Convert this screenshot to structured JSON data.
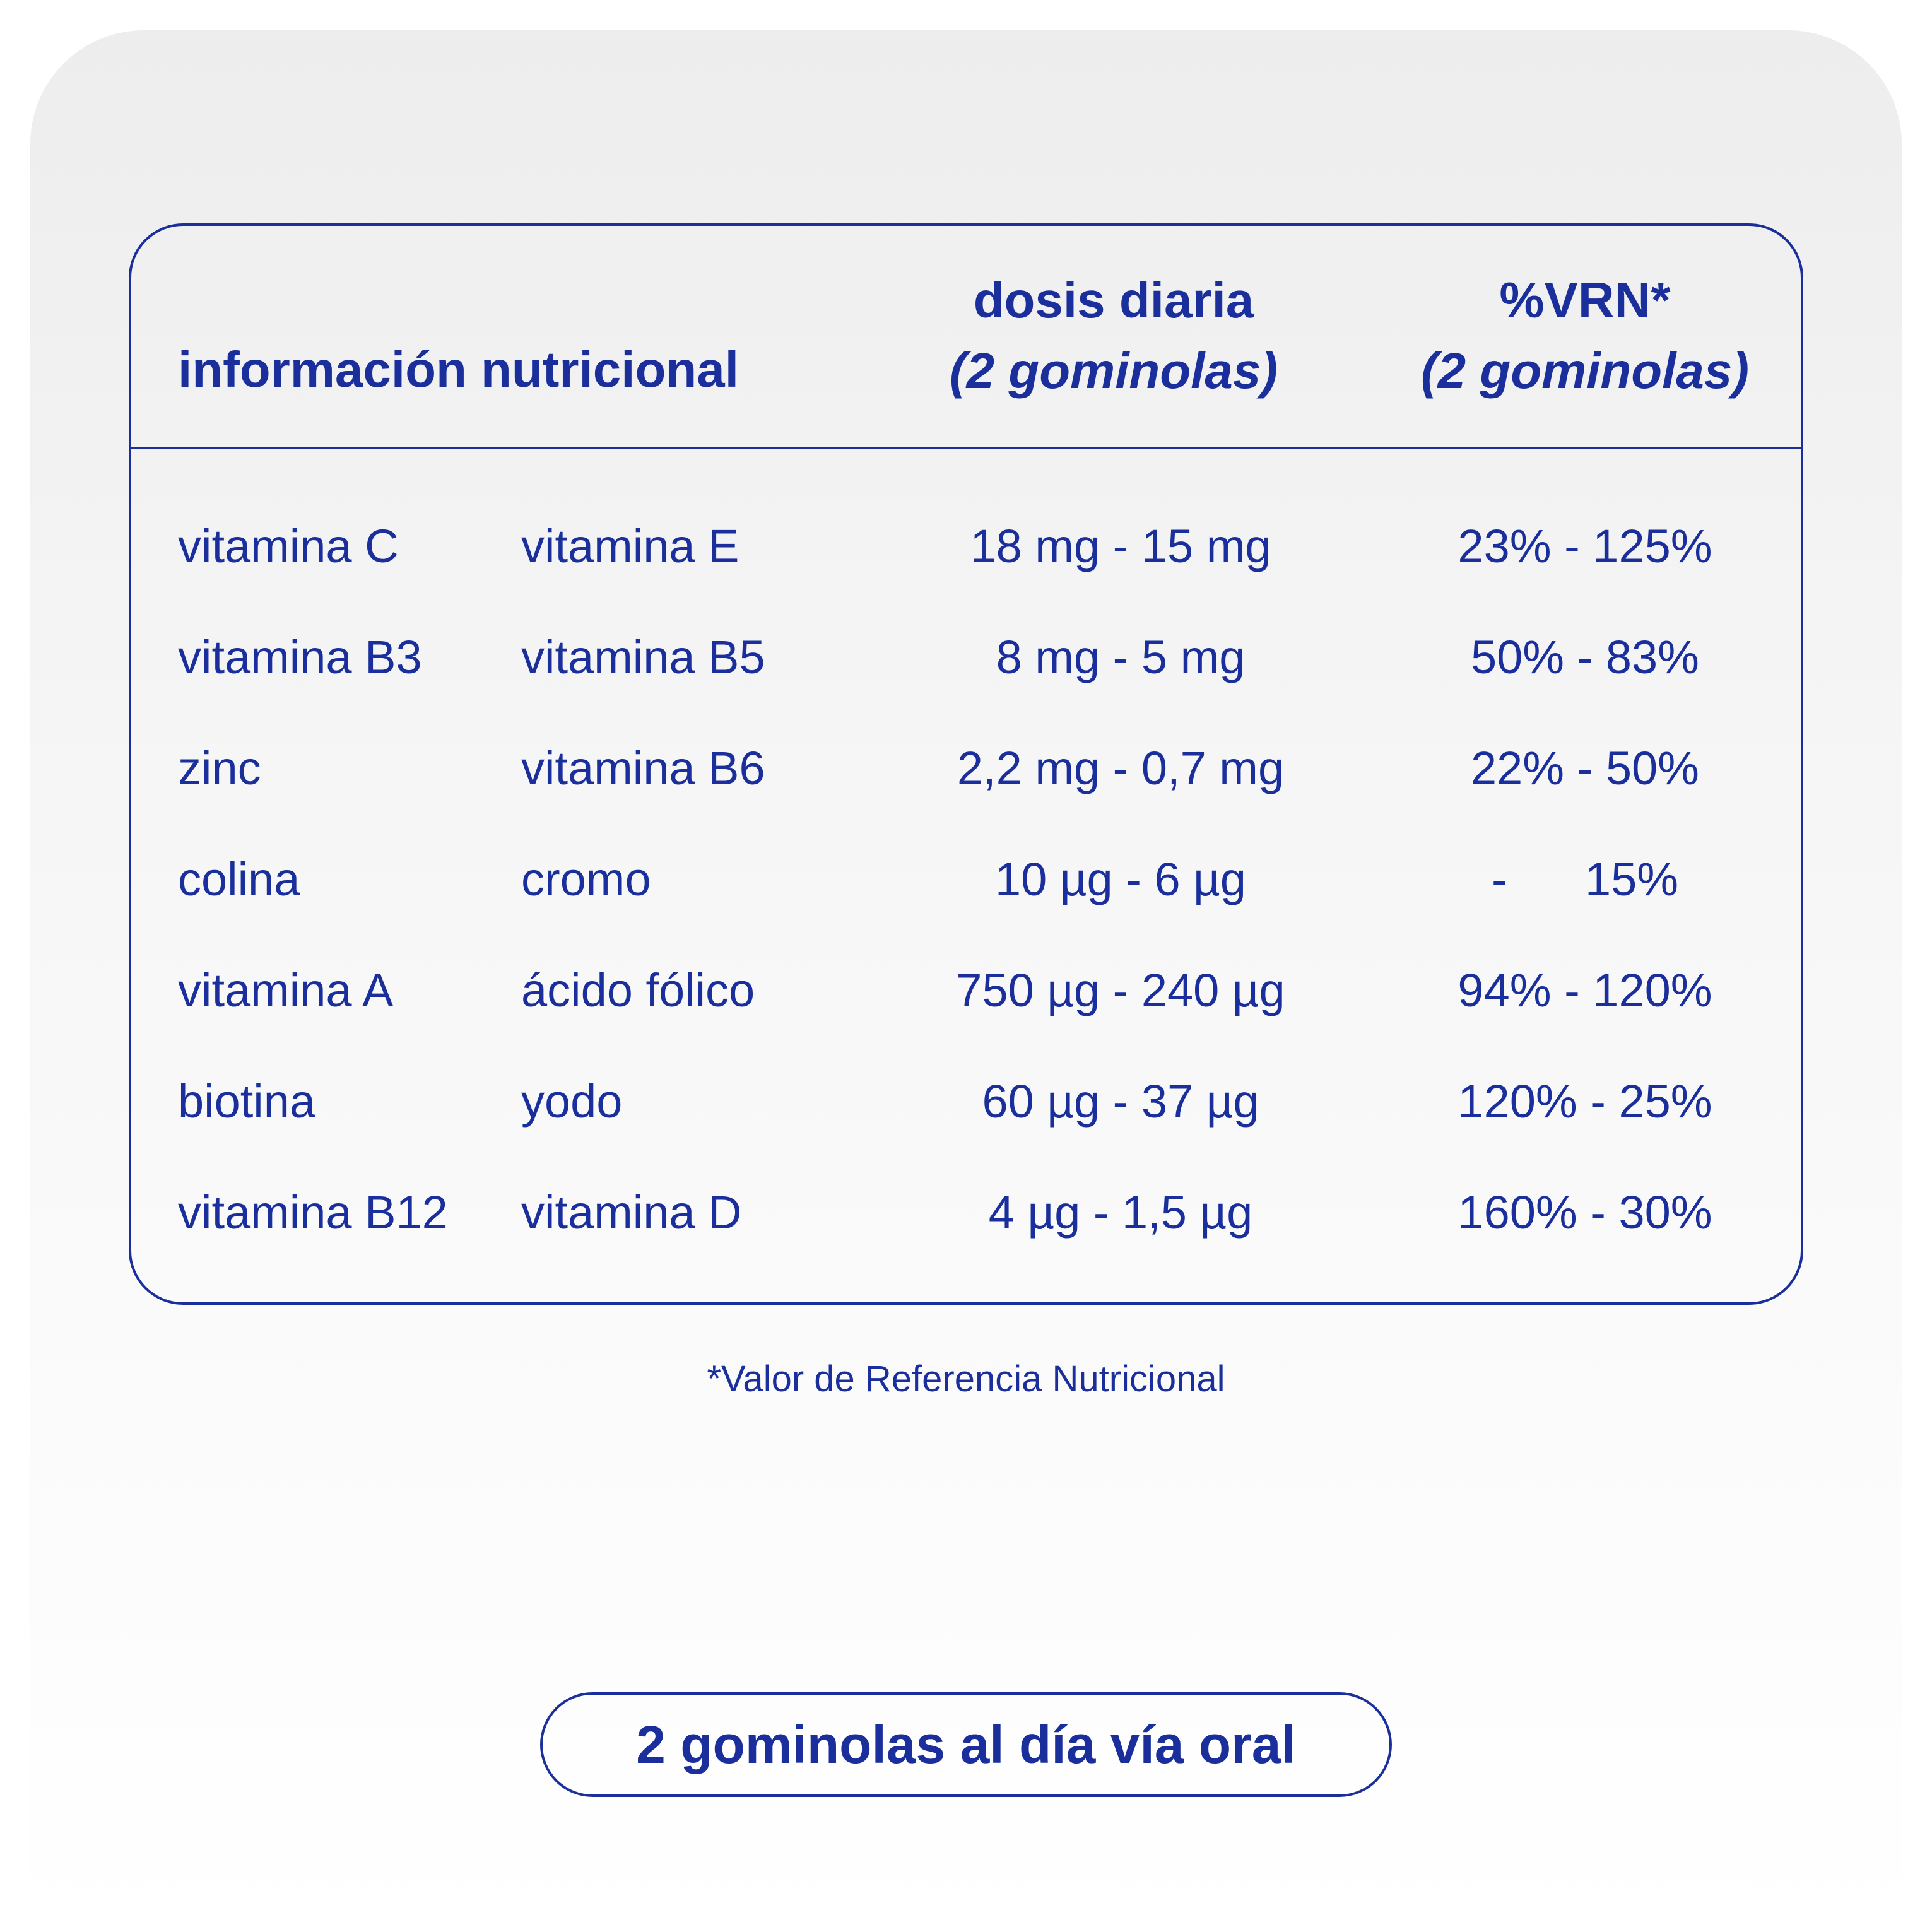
{
  "header": {
    "title": "información nutricional",
    "dose_line1": "dosis diaria",
    "dose_line2": "(2 gominolas)",
    "vrn_line1": "%VRN*",
    "vrn_line2": "(2 gominolas)"
  },
  "rows": [
    {
      "n1": "vitamina C",
      "n2": "vitamina E",
      "dose": "18 mg - 15 mg",
      "vrn": "23% - 125%"
    },
    {
      "n1": "vitamina B3",
      "n2": "vitamina B5",
      "dose": "8 mg - 5 mg",
      "vrn": "50% - 83%"
    },
    {
      "n1": "zinc",
      "n2": "vitamina B6",
      "dose": "2,2 mg - 0,7 mg",
      "vrn": "22% - 50%"
    },
    {
      "n1": "colina",
      "n2": "cromo",
      "dose": "10 µg - 6 µg",
      "vrn": "-      15%"
    },
    {
      "n1": "vitamina A",
      "n2": "ácido fólico",
      "dose": "750 µg - 240 µg",
      "vrn": "94% - 120%"
    },
    {
      "n1": "biotina",
      "n2": "yodo",
      "dose": "60 µg - 37 µg",
      "vrn": "120% - 25%"
    },
    {
      "n1": "vitamina B12",
      "n2": "vitamina D",
      "dose": "4 µg - 1,5 µg",
      "vrn": "160% - 30%"
    }
  ],
  "footnote": "*Valor de Referencia Nutricional",
  "pill_label": "2 gominolas al día vía oral",
  "colors": {
    "text": "#1a2f9c",
    "background": "#ededed"
  }
}
